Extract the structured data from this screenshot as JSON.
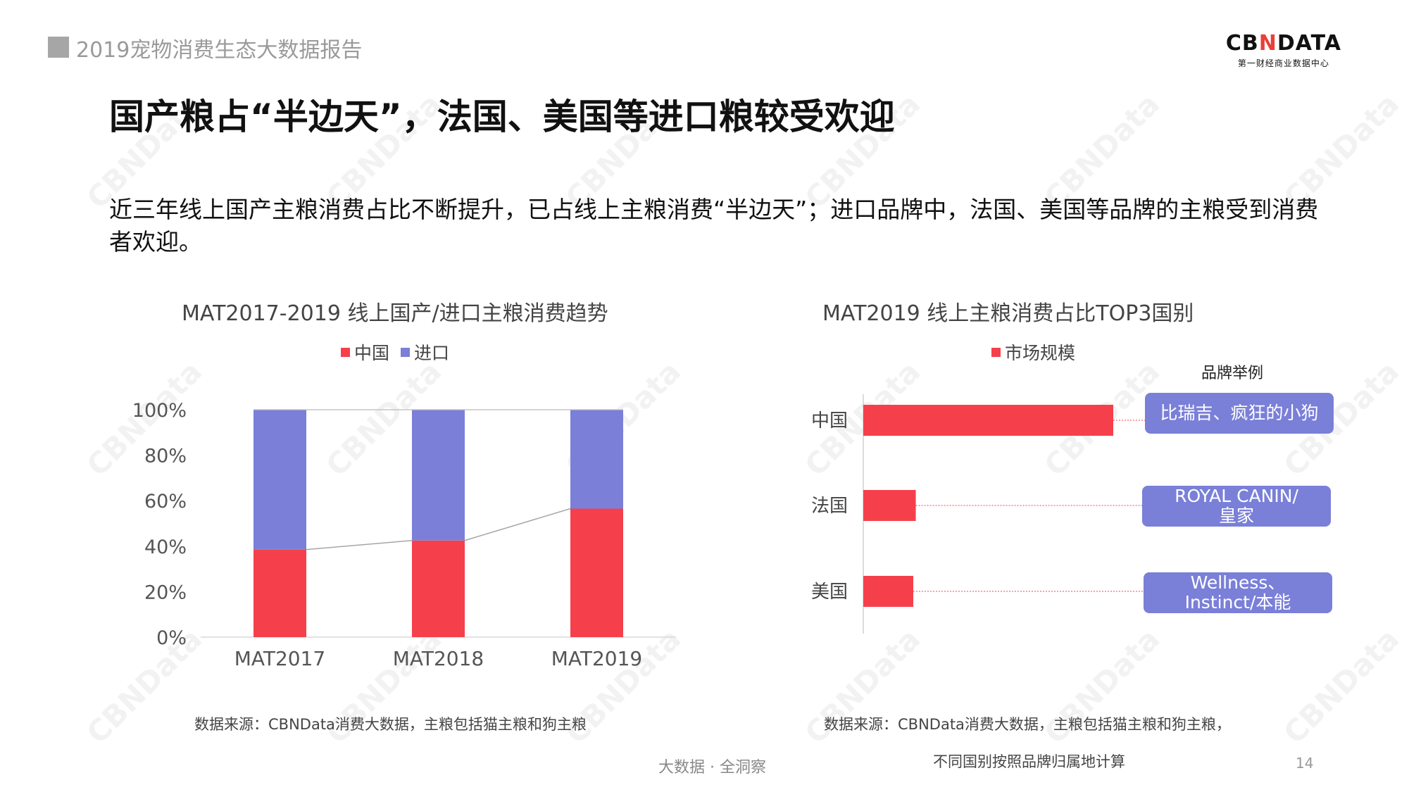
{
  "header": {
    "report_title": "2019宠物消费生态大数据报告",
    "logo_text_pre": "CB",
    "logo_text_n": "N",
    "logo_text_post": "DATA",
    "logo_sub": "第一财经商业数据中心"
  },
  "slide": {
    "title": "国产粮占“半边天”，法国、美国等进口粮较受欢迎",
    "subtitle": "近三年线上国产主粮消费占比不断提升，已占线上主粮消费“半边天”；进口品牌中，法国、美国等品牌的主粮受到消费者欢迎。"
  },
  "watermark_text": "CBNData",
  "colors": {
    "china": "#f5404b",
    "import": "#7b7fd8",
    "brand_box": "#7a7fd8"
  },
  "chart_data": [
    {
      "type": "bar",
      "stacked": true,
      "title": "MAT2017-2019 线上国产/进口主粮消费趋势",
      "categories": [
        "MAT2017",
        "MAT2018",
        "MAT2019"
      ],
      "series": [
        {
          "name": "中国",
          "values": [
            38.5,
            42.5,
            56.5
          ]
        },
        {
          "name": "进口",
          "values": [
            61.5,
            57.5,
            43.5
          ]
        }
      ],
      "yticks": [
        "0%",
        "20%",
        "40%",
        "60%",
        "80%",
        "100%"
      ],
      "ylim": [
        0,
        100
      ],
      "legend": "top",
      "grid": false,
      "connector_line": true
    },
    {
      "type": "bar",
      "orientation": "horizontal",
      "title": "MAT2019 线上主粮消费占比TOP3国别",
      "categories": [
        "中国",
        "法国",
        "美国"
      ],
      "series": [
        {
          "name": "市场规模",
          "values": [
            100,
            21,
            20
          ]
        }
      ],
      "legend": "top",
      "grid": false,
      "annotation_header": "品牌举例",
      "annotations": [
        "比瑞吉、疯狂的小狗",
        "ROYAL CANIN/\n皇家",
        "Wellness、\nInstinct/本能"
      ]
    }
  ],
  "sources": {
    "left": "数据来源：CBNData消费大数据，主粮包括猫主粮和狗主粮",
    "right_line1": "数据来源：CBNData消费大数据，主粮包括猫主粮和狗主粮，",
    "right_line2": "不同国别按照品牌归属地计算"
  },
  "footer": {
    "center": "大数据 · 全洞察",
    "page": "14"
  }
}
